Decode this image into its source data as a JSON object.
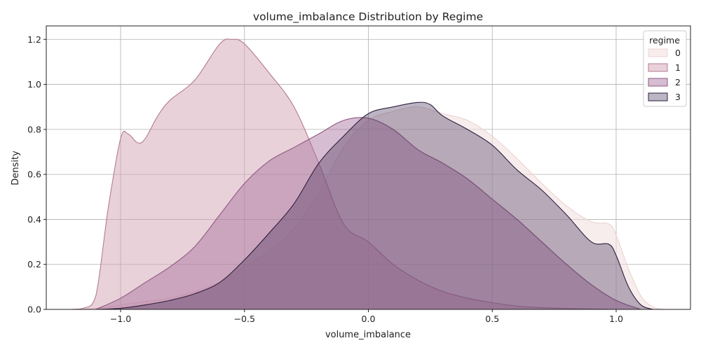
{
  "chart_data": {
    "type": "area",
    "title": "volume_imbalance Distribution by Regime",
    "xlabel": "volume_imbalance",
    "ylabel": "Density",
    "xlim": [
      -1.3,
      1.3
    ],
    "ylim": [
      0,
      1.26
    ],
    "xticks": [
      -1.0,
      -0.5,
      0.0,
      0.5,
      1.0
    ],
    "xtick_labels": [
      "−1.0",
      "−0.5",
      "0.0",
      "0.5",
      "1.0"
    ],
    "yticks": [
      0.0,
      0.2,
      0.4,
      0.6,
      0.8,
      1.0,
      1.2
    ],
    "ytick_labels": [
      "0.0",
      "0.2",
      "0.4",
      "0.6",
      "0.8",
      "1.0",
      "1.2"
    ],
    "grid": true,
    "legend": {
      "title": "regime",
      "placement": "top-right"
    },
    "series": [
      {
        "name": "0",
        "fill": "#f2dcdb",
        "fill_opacity": 0.5,
        "stroke": "#ecd3d2",
        "x": [
          -1.2,
          -1.1,
          -1.0,
          -0.9,
          -0.8,
          -0.7,
          -0.6,
          -0.5,
          -0.4,
          -0.3,
          -0.2,
          -0.1,
          0.0,
          0.1,
          0.2,
          0.3,
          0.4,
          0.5,
          0.6,
          0.7,
          0.8,
          0.9,
          0.97,
          1.0,
          1.05,
          1.1,
          1.15,
          1.2
        ],
        "y": [
          0.0,
          0.005,
          0.02,
          0.035,
          0.05,
          0.08,
          0.12,
          0.19,
          0.26,
          0.36,
          0.52,
          0.72,
          0.84,
          0.88,
          0.9,
          0.87,
          0.84,
          0.77,
          0.67,
          0.56,
          0.46,
          0.39,
          0.38,
          0.33,
          0.18,
          0.06,
          0.01,
          0.0
        ]
      },
      {
        "name": "1",
        "fill": "#d4a3b3",
        "fill_opacity": 0.5,
        "stroke": "#b47b94",
        "x": [
          -1.2,
          -1.15,
          -1.1,
          -1.05,
          -1.0,
          -0.97,
          -0.93,
          -0.9,
          -0.85,
          -0.8,
          -0.7,
          -0.6,
          -0.55,
          -0.5,
          -0.4,
          -0.3,
          -0.2,
          -0.1,
          0.0,
          0.1,
          0.2,
          0.3,
          0.4,
          0.5,
          0.6,
          0.7,
          0.8,
          0.9,
          1.0
        ],
        "y": [
          0.0,
          0.005,
          0.06,
          0.45,
          0.76,
          0.78,
          0.74,
          0.76,
          0.86,
          0.93,
          1.02,
          1.18,
          1.2,
          1.18,
          1.05,
          0.9,
          0.65,
          0.38,
          0.3,
          0.2,
          0.13,
          0.08,
          0.05,
          0.03,
          0.015,
          0.008,
          0.004,
          0.002,
          0.0
        ]
      },
      {
        "name": "2",
        "fill": "#a66d9c",
        "fill_opacity": 0.45,
        "stroke": "#8f5a83",
        "x": [
          -1.1,
          -1.0,
          -0.9,
          -0.8,
          -0.7,
          -0.6,
          -0.5,
          -0.4,
          -0.3,
          -0.2,
          -0.1,
          0.0,
          0.1,
          0.2,
          0.3,
          0.4,
          0.5,
          0.6,
          0.7,
          0.8,
          0.9,
          1.0,
          1.1
        ],
        "y": [
          0.0,
          0.05,
          0.12,
          0.19,
          0.28,
          0.42,
          0.56,
          0.66,
          0.72,
          0.78,
          0.84,
          0.85,
          0.8,
          0.71,
          0.65,
          0.58,
          0.49,
          0.4,
          0.3,
          0.2,
          0.11,
          0.04,
          0.0
        ]
      },
      {
        "name": "3",
        "fill": "#3e2c52",
        "fill_opacity": 0.35,
        "stroke": "#2e1f3e",
        "x": [
          -1.1,
          -1.0,
          -0.9,
          -0.8,
          -0.7,
          -0.6,
          -0.5,
          -0.4,
          -0.3,
          -0.2,
          -0.1,
          0.0,
          0.1,
          0.2,
          0.25,
          0.3,
          0.4,
          0.5,
          0.6,
          0.7,
          0.8,
          0.9,
          0.97,
          1.0,
          1.05,
          1.1,
          1.15
        ],
        "y": [
          0.0,
          0.005,
          0.02,
          0.04,
          0.07,
          0.12,
          0.22,
          0.34,
          0.47,
          0.65,
          0.77,
          0.87,
          0.9,
          0.92,
          0.91,
          0.86,
          0.8,
          0.73,
          0.62,
          0.53,
          0.42,
          0.3,
          0.29,
          0.24,
          0.1,
          0.02,
          0.0
        ]
      }
    ]
  }
}
